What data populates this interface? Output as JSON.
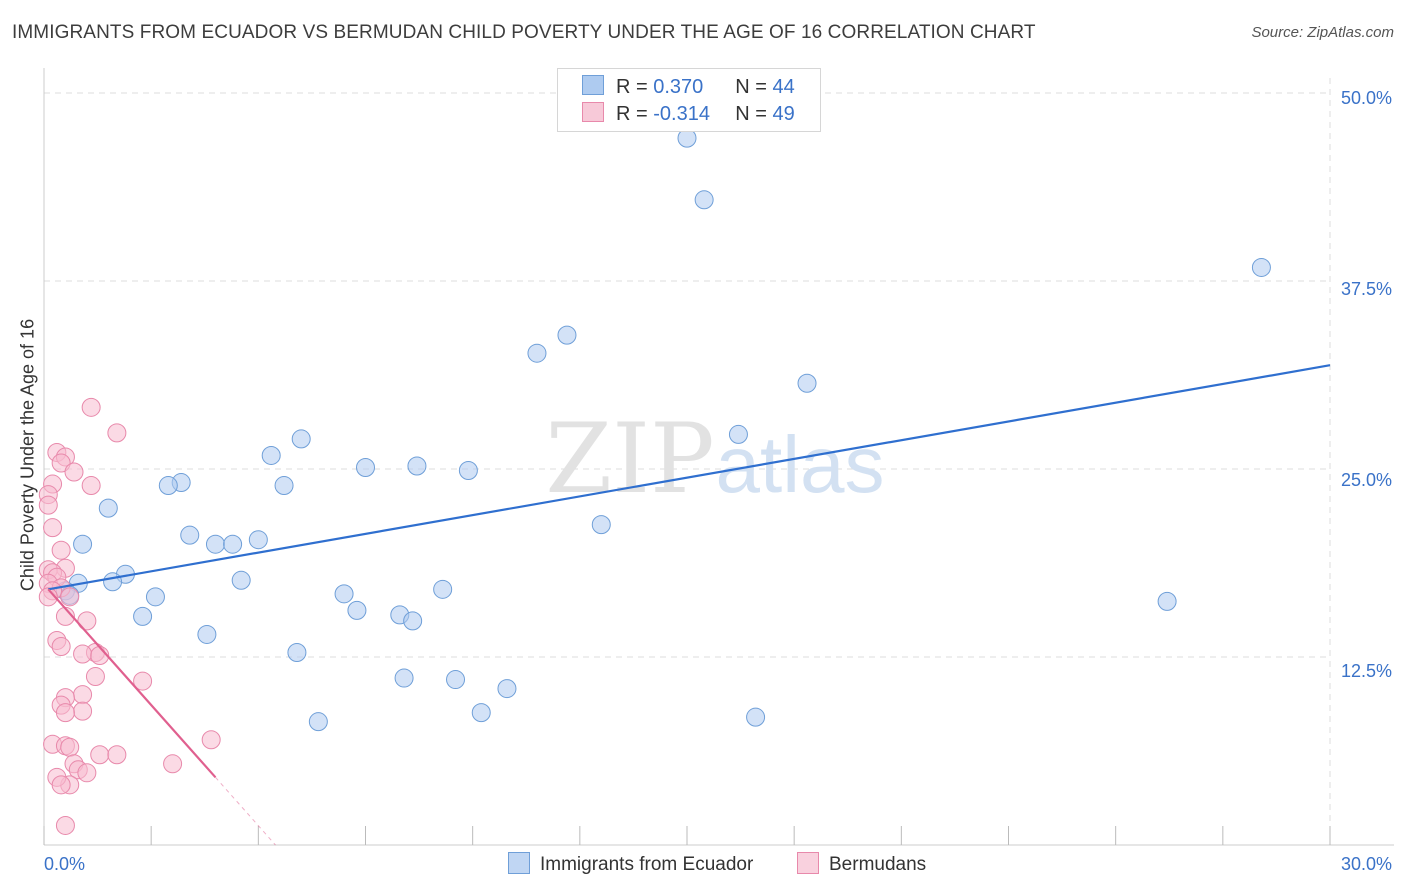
{
  "header": {
    "title": "IMMIGRANTS FROM ECUADOR VS BERMUDAN CHILD POVERTY UNDER THE AGE OF 16 CORRELATION CHART",
    "source": "Source: ZipAtlas.com"
  },
  "watermark": {
    "zip": "ZIP",
    "atlas": "atlas"
  },
  "colors": {
    "blue_fill": "#aecbf0",
    "blue_stroke": "#6f9fd8",
    "blue_line": "#2f6fcf",
    "pink_fill": "#f7bcd0",
    "pink_stroke": "#e889ab",
    "pink_line": "#e0608f",
    "tick_text": "#3a72c8",
    "grid": "#dddddd"
  },
  "legend_top": {
    "rows": [
      {
        "r_label": "R = ",
        "r_value": "0.370",
        "n_label": "N = ",
        "n_value": "44",
        "swatch": "blue"
      },
      {
        "r_label": "R = ",
        "r_value": "-0.314",
        "n_label": "N = ",
        "n_value": "49",
        "swatch": "pink"
      }
    ]
  },
  "legend_bottom": [
    {
      "label": "Immigrants from Ecuador",
      "swatch": "blue"
    },
    {
      "label": "Bermudans",
      "swatch": "pink"
    }
  ],
  "chart_data": {
    "type": "scatter",
    "title": "IMMIGRANTS FROM ECUADOR VS BERMUDAN CHILD POVERTY UNDER THE AGE OF 16 CORRELATION CHART",
    "xlabel": "",
    "ylabel": "Child Poverty Under the Age of 16",
    "xlim": [
      0,
      30
    ],
    "ylim": [
      0,
      50
    ],
    "x_tick_labels": [
      "0.0%",
      "30.0%"
    ],
    "y_ticks": [
      12.5,
      25.0,
      37.5,
      50.0
    ],
    "y_tick_labels": [
      "12.5%",
      "25.0%",
      "37.5%",
      "50.0%"
    ],
    "grid": true,
    "series": [
      {
        "name": "Immigrants from Ecuador",
        "color": "blue",
        "R": 0.37,
        "N": 44,
        "trend": {
          "x": [
            0.1,
            30.0
          ],
          "y": [
            17.0,
            31.9
          ]
        },
        "points": [
          [
            15.0,
            47.0
          ],
          [
            15.4,
            42.9
          ],
          [
            28.4,
            38.4
          ],
          [
            12.2,
            33.9
          ],
          [
            11.5,
            32.7
          ],
          [
            17.8,
            30.7
          ],
          [
            16.2,
            27.3
          ],
          [
            6.0,
            27.0
          ],
          [
            5.3,
            25.9
          ],
          [
            7.5,
            25.1
          ],
          [
            8.7,
            25.2
          ],
          [
            9.9,
            24.9
          ],
          [
            3.2,
            24.1
          ],
          [
            5.6,
            23.9
          ],
          [
            2.9,
            23.9
          ],
          [
            1.5,
            22.4
          ],
          [
            13.0,
            21.3
          ],
          [
            3.4,
            20.6
          ],
          [
            0.9,
            20.0
          ],
          [
            4.0,
            20.0
          ],
          [
            4.4,
            20.0
          ],
          [
            5.0,
            20.3
          ],
          [
            1.9,
            18.0
          ],
          [
            1.6,
            17.5
          ],
          [
            4.6,
            17.6
          ],
          [
            0.8,
            17.4
          ],
          [
            0.5,
            16.9
          ],
          [
            0.6,
            16.6
          ],
          [
            2.6,
            16.5
          ],
          [
            7.0,
            16.7
          ],
          [
            9.3,
            17.0
          ],
          [
            26.2,
            16.2
          ],
          [
            2.3,
            15.2
          ],
          [
            7.3,
            15.6
          ],
          [
            8.3,
            15.3
          ],
          [
            8.6,
            14.9
          ],
          [
            3.8,
            14.0
          ],
          [
            5.9,
            12.8
          ],
          [
            8.4,
            11.1
          ],
          [
            9.6,
            11.0
          ],
          [
            10.8,
            10.4
          ],
          [
            10.2,
            8.8
          ],
          [
            6.4,
            8.2
          ],
          [
            16.6,
            8.5
          ]
        ]
      },
      {
        "name": "Bermudans",
        "color": "pink",
        "R": -0.314,
        "N": 49,
        "trend": {
          "x": [
            0.1,
            4.0
          ],
          "y": [
            17.0,
            4.5
          ]
        },
        "trend_dashed": {
          "x": [
            4.0,
            5.4
          ],
          "y": [
            4.5,
            0.0
          ]
        },
        "points": [
          [
            1.1,
            29.1
          ],
          [
            1.7,
            27.4
          ],
          [
            0.3,
            26.1
          ],
          [
            0.5,
            25.8
          ],
          [
            0.4,
            25.4
          ],
          [
            0.7,
            24.8
          ],
          [
            1.1,
            23.9
          ],
          [
            0.2,
            24.0
          ],
          [
            0.1,
            23.3
          ],
          [
            0.1,
            22.6
          ],
          [
            0.2,
            21.1
          ],
          [
            0.4,
            19.6
          ],
          [
            0.5,
            18.4
          ],
          [
            0.1,
            18.3
          ],
          [
            0.2,
            18.1
          ],
          [
            0.3,
            17.8
          ],
          [
            0.1,
            17.4
          ],
          [
            0.4,
            17.1
          ],
          [
            0.2,
            16.9
          ],
          [
            0.1,
            16.5
          ],
          [
            0.6,
            16.5
          ],
          [
            0.5,
            15.2
          ],
          [
            1.0,
            14.9
          ],
          [
            0.3,
            13.6
          ],
          [
            0.4,
            13.2
          ],
          [
            1.2,
            12.8
          ],
          [
            0.9,
            12.7
          ],
          [
            1.3,
            12.6
          ],
          [
            1.2,
            11.2
          ],
          [
            2.3,
            10.9
          ],
          [
            0.9,
            10.0
          ],
          [
            0.5,
            9.8
          ],
          [
            0.4,
            9.3
          ],
          [
            0.9,
            8.9
          ],
          [
            0.5,
            8.8
          ],
          [
            0.2,
            6.7
          ],
          [
            0.5,
            6.6
          ],
          [
            0.6,
            6.5
          ],
          [
            3.9,
            7.0
          ],
          [
            1.3,
            6.0
          ],
          [
            1.7,
            6.0
          ],
          [
            0.7,
            5.4
          ],
          [
            0.8,
            5.0
          ],
          [
            1.0,
            4.8
          ],
          [
            0.6,
            4.0
          ],
          [
            3.0,
            5.4
          ],
          [
            0.3,
            4.5
          ],
          [
            0.4,
            4.0
          ],
          [
            0.5,
            1.3
          ]
        ]
      }
    ]
  }
}
